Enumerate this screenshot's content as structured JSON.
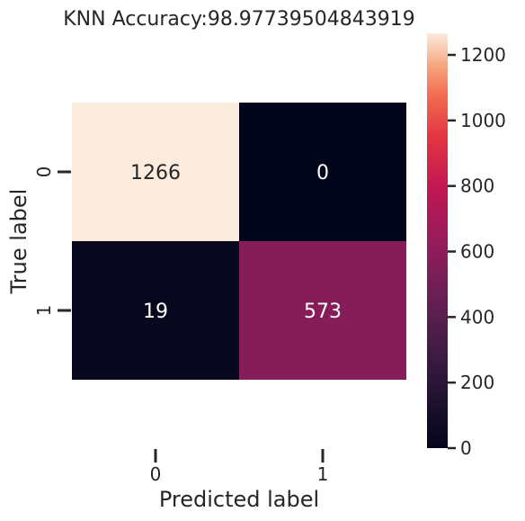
{
  "chart_data": {
    "type": "heatmap",
    "title": "KNN Accuracy:98.97739504843919",
    "xlabel": "Predicted label",
    "ylabel": "True label",
    "x_categories": [
      "0",
      "1"
    ],
    "y_categories": [
      "0",
      "1"
    ],
    "values": [
      [
        1266,
        0
      ],
      [
        19,
        573
      ]
    ],
    "annotations": [
      [
        "1266",
        "0"
      ],
      [
        "19",
        "573"
      ]
    ],
    "colorbar": {
      "min": 0,
      "max": 1266,
      "ticks": [
        0,
        200,
        400,
        600,
        800,
        1000,
        1200
      ],
      "tick_labels": [
        "0",
        "200",
        "400",
        "600",
        "800",
        "1000",
        "1200"
      ],
      "colormap": "rocket"
    },
    "grid": false
  }
}
